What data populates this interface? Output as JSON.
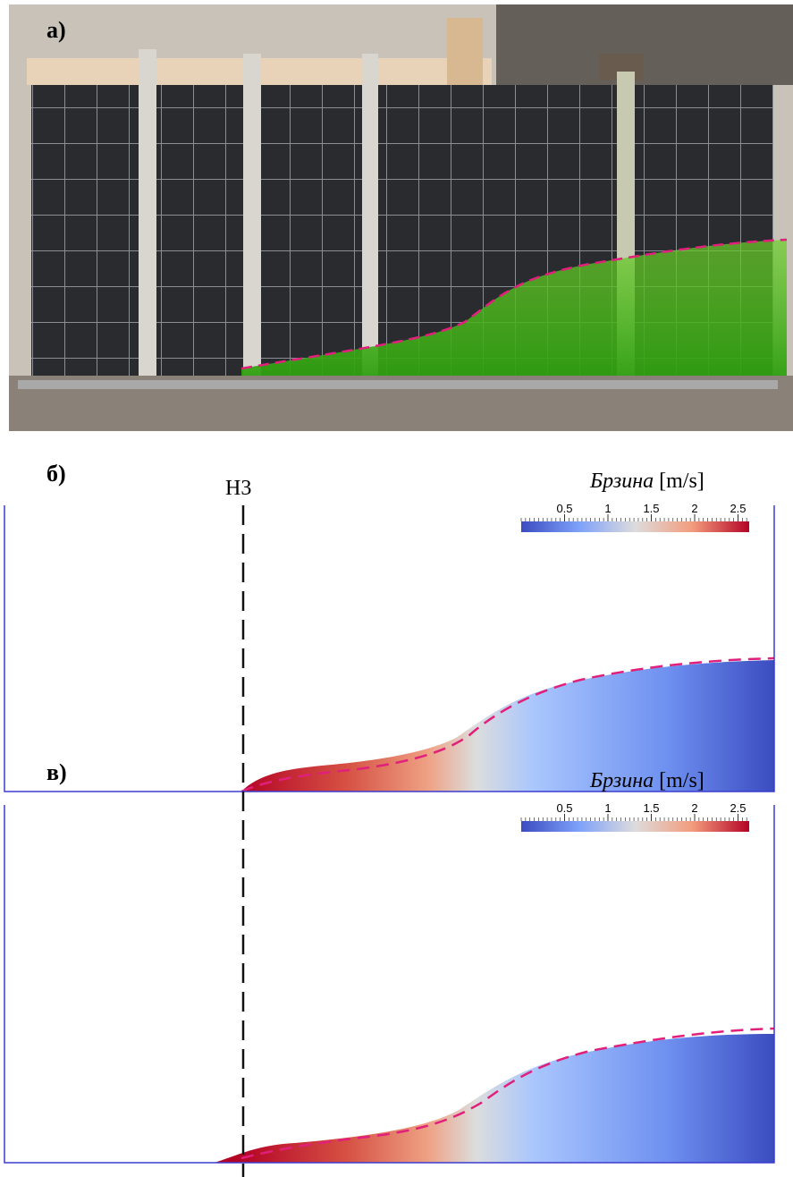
{
  "panels": [
    {
      "label": "а)"
    },
    {
      "label": "б)",
      "probe": "Н3",
      "colorbar": {
        "title": "Брзина",
        "unit": "[m/s]",
        "ticks": [
          0.5,
          1,
          1.5,
          2,
          2.5
        ]
      }
    },
    {
      "label": "в)",
      "colorbar": {
        "title": "Брзина",
        "unit": "[m/s]",
        "ticks": [
          0.5,
          1,
          1.5,
          2,
          2.5
        ]
      }
    }
  ]
}
